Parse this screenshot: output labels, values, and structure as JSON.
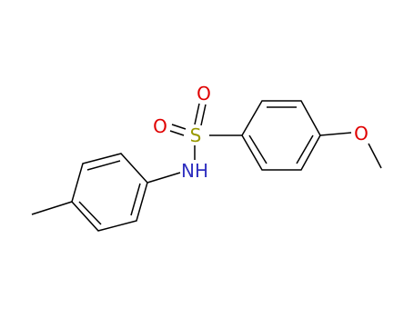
{
  "atoms": [
    {
      "label": "O"
    },
    {
      "label": "O"
    },
    {
      "label": "S"
    },
    {
      "label": "NH"
    },
    {
      "label": "O"
    }
  ]
}
